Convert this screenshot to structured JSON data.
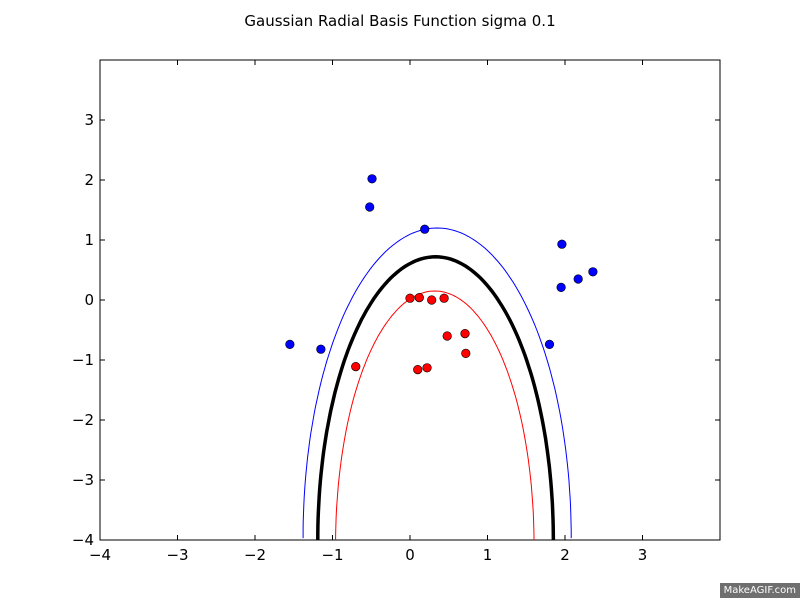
{
  "chart_data": {
    "type": "scatter",
    "title": "Gaussian Radial Basis Function sigma 0.1",
    "xlim": [
      -4,
      4
    ],
    "ylim": [
      -4,
      4
    ],
    "x_ticks": [
      -4,
      -3,
      -2,
      -1,
      0,
      1,
      2,
      3
    ],
    "y_ticks": [
      -4,
      -3,
      -2,
      -1,
      0,
      1,
      2,
      3
    ],
    "x_tick_labels": [
      "−4",
      "−3",
      "−2",
      "−1",
      "0",
      "1",
      "2",
      "3"
    ],
    "y_tick_labels": [
      "−4",
      "−3",
      "−2",
      "−1",
      "0",
      "1",
      "2",
      "3"
    ],
    "grid": false,
    "series": [
      {
        "color": "#0000ff",
        "points": [
          {
            "x": -0.49,
            "y": 2.02
          },
          {
            "x": -0.52,
            "y": 1.55
          },
          {
            "x": 0.19,
            "y": 1.18
          },
          {
            "x": 1.96,
            "y": 0.93
          },
          {
            "x": 2.17,
            "y": 0.35
          },
          {
            "x": 2.36,
            "y": 0.47
          },
          {
            "x": 1.95,
            "y": 0.21
          },
          {
            "x": 1.8,
            "y": -0.74
          },
          {
            "x": -1.55,
            "y": -0.74
          },
          {
            "x": -1.15,
            "y": -0.82
          }
        ]
      },
      {
        "color": "#ff0000",
        "points": [
          {
            "x": 0.0,
            "y": 0.03
          },
          {
            "x": 0.12,
            "y": 0.04
          },
          {
            "x": 0.28,
            "y": 0.0
          },
          {
            "x": 0.44,
            "y": 0.03
          },
          {
            "x": 0.48,
            "y": -0.6
          },
          {
            "x": 0.71,
            "y": -0.56
          },
          {
            "x": 0.72,
            "y": -0.89
          },
          {
            "x": -0.7,
            "y": -1.11
          },
          {
            "x": 0.1,
            "y": -1.16
          },
          {
            "x": 0.22,
            "y": -1.13
          }
        ]
      }
    ],
    "contours": [
      {
        "level": "positive margin",
        "color": "#ff0000",
        "width": 1,
        "cx": 0.32,
        "rx": 1.28,
        "top": 0.15
      },
      {
        "level": "decision boundary",
        "color": "#000000",
        "width": 3.5,
        "cx": 0.33,
        "rx": 1.52,
        "top": 0.72
      },
      {
        "level": "negative margin",
        "color": "#0000ff",
        "width": 1,
        "cx": 0.35,
        "rx": 1.73,
        "top": 1.2
      }
    ]
  },
  "watermark": "MakeAGIF.com"
}
